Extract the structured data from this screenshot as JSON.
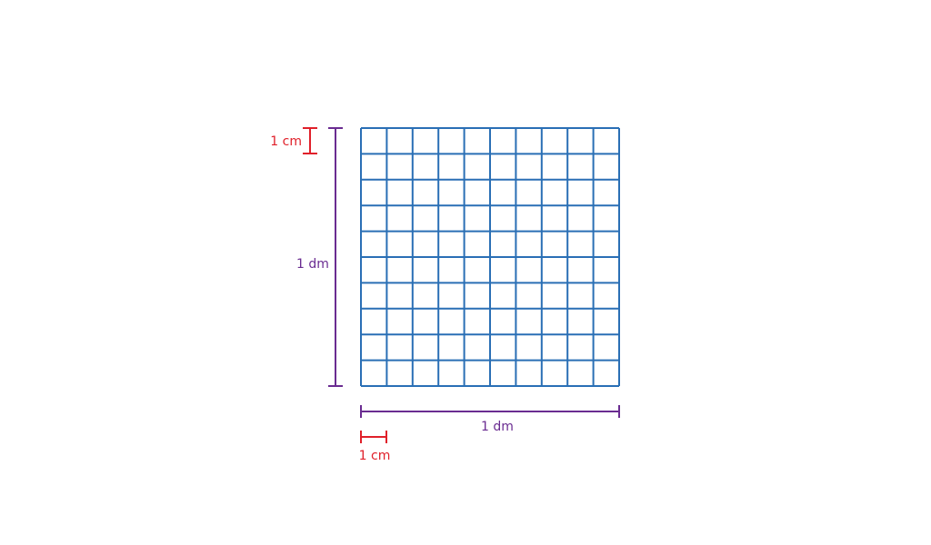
{
  "labels": {
    "left_cm": "1 cm",
    "left_dm": "1 dm",
    "bottom_dm": "1 dm",
    "bottom_cm": "1 cm"
  }
}
